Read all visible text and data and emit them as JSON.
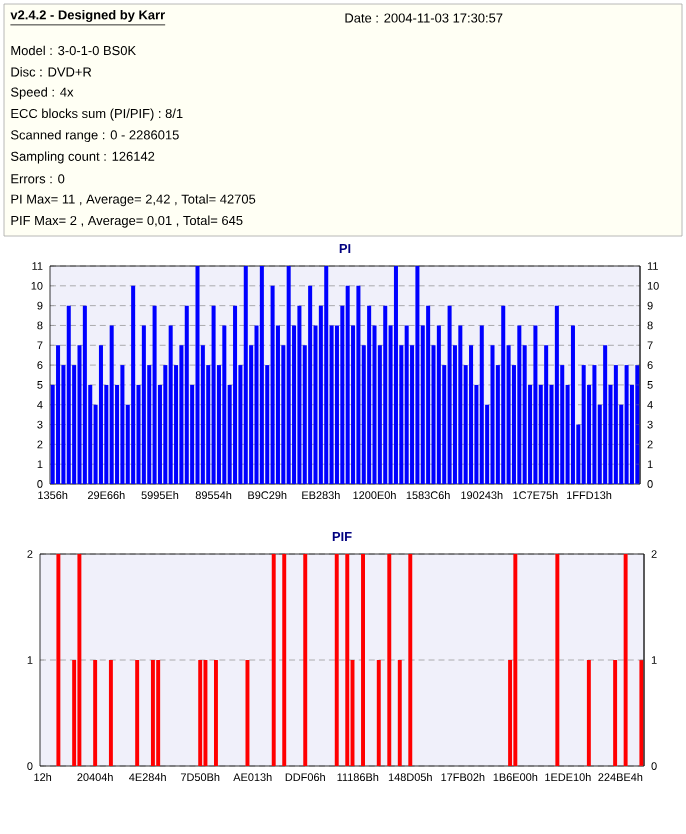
{
  "chart_data": [
    {
      "type": "other",
      "title": "v2.4.2 - Designed by Karr",
      "annotations": [
        "Date : 2004-11-03 17:30:57",
        "Model : 3-0-1-0 BS0K",
        "Disc : DVD+R",
        "Speed : 4x",
        "ECC blocks sum (PI/PIF) : 8/1",
        "Scanned range : 0 - 2286015",
        "Sampling count : 126142",
        "Errors : 0",
        "PI Max= 11 , Average= 2,42 , Total= 42705",
        "PIF Max= 2 , Average= 0,01 , Total= 645"
      ]
    },
    {
      "type": "bar",
      "title": "PI",
      "color": "#0000ff",
      "grid": "y",
      "categories": [
        "1356h",
        null,
        null,
        null,
        null,
        null,
        null,
        null,
        null,
        null,
        "29E66h",
        null,
        null,
        null,
        null,
        null,
        null,
        null,
        null,
        null,
        "5995Eh",
        null,
        null,
        null,
        null,
        null,
        null,
        null,
        null,
        null,
        "89554h",
        null,
        null,
        null,
        null,
        null,
        null,
        null,
        null,
        null,
        "B9C29h",
        null,
        null,
        null,
        null,
        null,
        null,
        null,
        null,
        null,
        "EB283h",
        null,
        null,
        null,
        null,
        null,
        null,
        null,
        null,
        null,
        "1200E0h",
        null,
        null,
        null,
        null,
        null,
        null,
        null,
        null,
        null,
        "1583C6h",
        null,
        null,
        null,
        null,
        null,
        null,
        null,
        null,
        null,
        "190243h",
        null,
        null,
        null,
        null,
        null,
        null,
        null,
        null,
        null,
        "1C7E75h",
        null,
        null,
        null,
        null,
        null,
        null,
        null,
        null,
        null,
        "1FFD13h",
        null,
        null,
        null,
        null,
        null,
        null,
        null,
        null,
        null
      ],
      "values": [
        5,
        7,
        6,
        9,
        6,
        7,
        9,
        5,
        4,
        7,
        5,
        8,
        5,
        6,
        4,
        10,
        5,
        8,
        6,
        9,
        5,
        6,
        8,
        6,
        7,
        9,
        5,
        11,
        7,
        6,
        9,
        6,
        8,
        5,
        9,
        6,
        11,
        7,
        8,
        11,
        6,
        10,
        8,
        7,
        11,
        8,
        9,
        7,
        10,
        8,
        9,
        11,
        8,
        8,
        9,
        10,
        8,
        10,
        7,
        9,
        8,
        7,
        9,
        8,
        11,
        7,
        8,
        7,
        11,
        8,
        9,
        7,
        8,
        6,
        9,
        7,
        8,
        6,
        7,
        5,
        8,
        4,
        7,
        6,
        9,
        7,
        6,
        8,
        7,
        5,
        8,
        5,
        7,
        5,
        9,
        6,
        5,
        8,
        3,
        6,
        5,
        6,
        4,
        7,
        5,
        6,
        4,
        6,
        5,
        6
      ],
      "ylim": [
        0,
        11
      ],
      "yticks": [
        0,
        1,
        2,
        3,
        4,
        5,
        6,
        7,
        8,
        9,
        10,
        11
      ],
      "y2lim": [
        0,
        11
      ],
      "y2ticks": [
        0,
        1,
        2,
        3,
        4,
        5,
        6,
        7,
        8,
        9,
        10,
        11
      ]
    },
    {
      "type": "bar",
      "title": "PIF",
      "color": "#ff0000",
      "grid": "y",
      "categories": [
        "12h",
        null,
        null,
        null,
        null,
        null,
        null,
        null,
        null,
        null,
        "20404h",
        null,
        null,
        null,
        null,
        null,
        null,
        null,
        null,
        null,
        "4E284h",
        null,
        null,
        null,
        null,
        null,
        null,
        null,
        null,
        null,
        "7D50Bh",
        null,
        null,
        null,
        null,
        null,
        null,
        null,
        null,
        null,
        "AE013h",
        null,
        null,
        null,
        null,
        null,
        null,
        null,
        null,
        null,
        "DDF06h",
        null,
        null,
        null,
        null,
        null,
        null,
        null,
        null,
        null,
        "11186Bh",
        null,
        null,
        null,
        null,
        null,
        null,
        null,
        null,
        null,
        "148D05h",
        null,
        null,
        null,
        null,
        null,
        null,
        null,
        null,
        null,
        "17FB02h",
        null,
        null,
        null,
        null,
        null,
        null,
        null,
        null,
        null,
        "1B6E00h",
        null,
        null,
        null,
        null,
        null,
        null,
        null,
        null,
        null,
        "1EDE10h",
        null,
        null,
        null,
        null,
        null,
        null,
        null,
        null,
        null,
        "224BE4h",
        null,
        null,
        null,
        null
      ],
      "values": [
        0,
        0,
        0,
        2,
        0,
        0,
        1,
        2,
        0,
        0,
        1,
        0,
        0,
        1,
        0,
        0,
        0,
        0,
        1,
        0,
        0,
        1,
        1,
        0,
        0,
        0,
        0,
        0,
        0,
        0,
        1,
        1,
        0,
        1,
        0,
        0,
        0,
        0,
        0,
        1,
        0,
        0,
        0,
        0,
        2,
        0,
        2,
        0,
        0,
        0,
        2,
        0,
        0,
        0,
        0,
        0,
        2,
        0,
        2,
        1,
        0,
        2,
        0,
        0,
        1,
        0,
        2,
        0,
        1,
        0,
        2,
        0,
        0,
        0,
        0,
        0,
        0,
        0,
        0,
        0,
        0,
        0,
        0,
        0,
        0,
        0,
        0,
        0,
        0,
        1,
        2,
        0,
        0,
        0,
        0,
        0,
        0,
        0,
        2,
        0,
        0,
        0,
        0,
        0,
        1,
        0,
        0,
        0,
        0,
        1,
        0,
        2,
        0,
        0,
        1
      ],
      "ylim": [
        0,
        2
      ],
      "yticks": [
        0,
        1,
        2
      ],
      "y2lim": [
        0,
        2
      ],
      "y2ticks": [
        0,
        1,
        2
      ]
    }
  ]
}
